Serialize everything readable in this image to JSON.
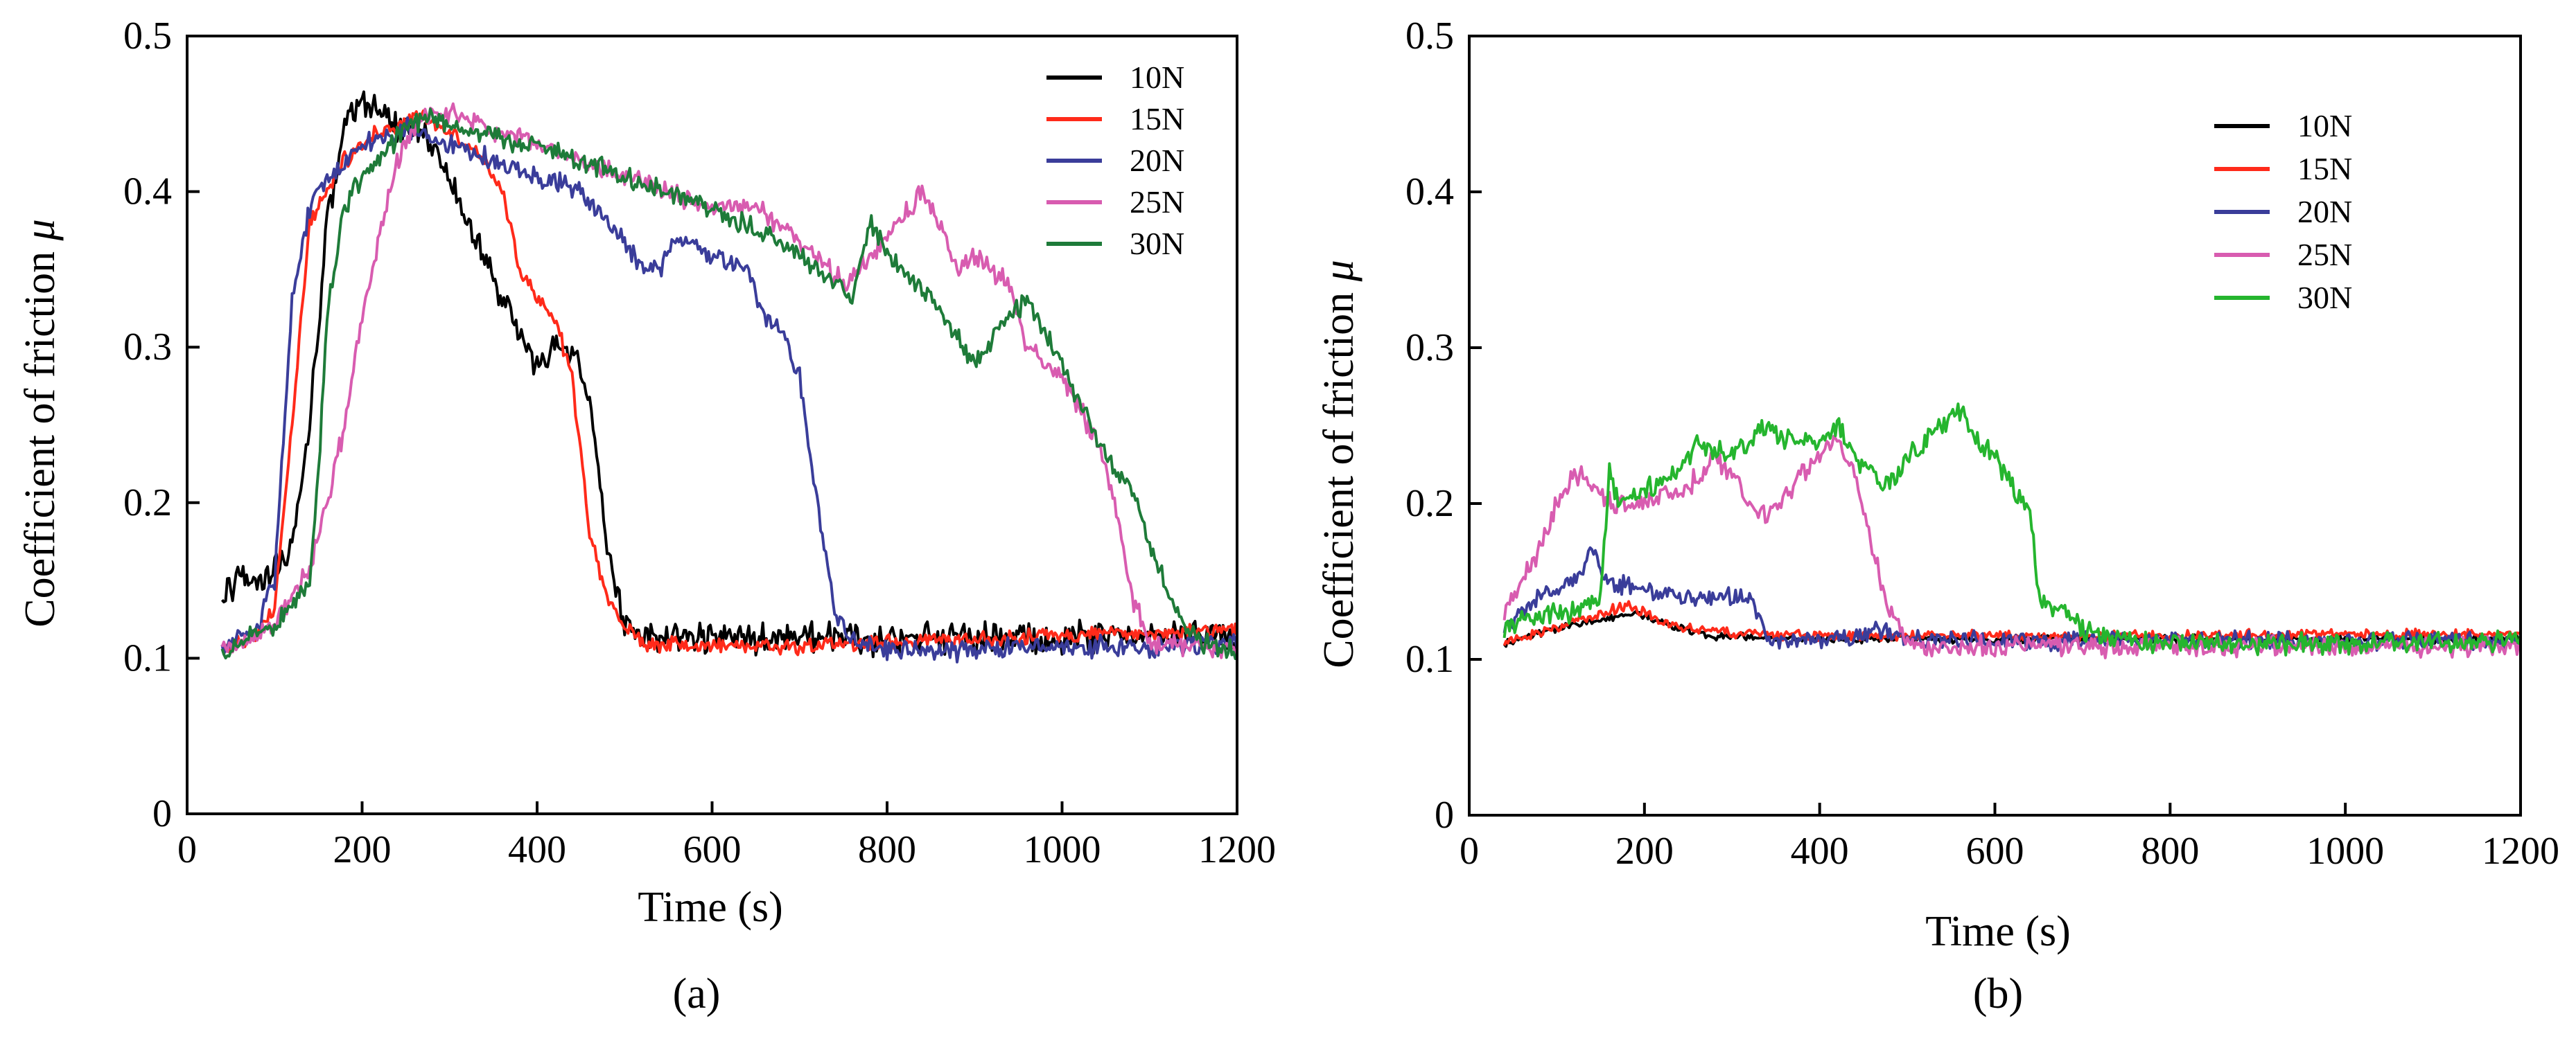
{
  "chart_data": [
    {
      "type": "line",
      "panel": "(a)",
      "xlabel": "Time (s)",
      "ylabel": "Coefficient of friction ",
      "ylabel_symbol": "μ",
      "xlim": [
        0,
        1200
      ],
      "ylim": [
        0,
        0.5
      ],
      "xticks": [
        0,
        200,
        400,
        600,
        800,
        1000,
        1200
      ],
      "yticks": [
        0,
        0.1,
        0.2,
        0.3,
        0.4,
        0.5
      ],
      "xtick_labels": [
        "0",
        "200",
        "400",
        "600",
        "800",
        "1000",
        "1200"
      ],
      "ytick_labels": [
        "0",
        "0.1",
        "0.2",
        "0.3",
        "0.4",
        "0.5"
      ],
      "legend_position": "top-right",
      "series": [
        {
          "name": "10N",
          "color": "#000000",
          "noise": 0.012,
          "x": [
            40,
            60,
            80,
            100,
            120,
            140,
            160,
            180,
            200,
            220,
            240,
            260,
            280,
            300,
            320,
            340,
            360,
            380,
            400,
            420,
            440,
            460,
            480,
            500,
            520,
            600,
            700,
            800,
            900,
            1000,
            1100,
            1200
          ],
          "y": [
            0.14,
            0.15,
            0.15,
            0.16,
            0.17,
            0.25,
            0.38,
            0.44,
            0.46,
            0.45,
            0.44,
            0.44,
            0.43,
            0.41,
            0.38,
            0.36,
            0.33,
            0.31,
            0.29,
            0.3,
            0.3,
            0.27,
            0.17,
            0.12,
            0.115,
            0.113,
            0.113,
            0.112,
            0.113,
            0.113,
            0.115,
            0.115
          ]
        },
        {
          "name": "15N",
          "color": "#ff2a1a",
          "noise": 0.006,
          "x": [
            40,
            60,
            80,
            100,
            120,
            140,
            160,
            180,
            200,
            220,
            240,
            260,
            280,
            300,
            320,
            340,
            360,
            380,
            400,
            420,
            440,
            460,
            480,
            500,
            520,
            600,
            700,
            800,
            900,
            1000,
            1100,
            1200
          ],
          "y": [
            0.105,
            0.11,
            0.115,
            0.13,
            0.25,
            0.38,
            0.4,
            0.42,
            0.43,
            0.44,
            0.44,
            0.45,
            0.445,
            0.44,
            0.43,
            0.42,
            0.4,
            0.35,
            0.33,
            0.32,
            0.28,
            0.18,
            0.14,
            0.12,
            0.11,
            0.108,
            0.108,
            0.11,
            0.112,
            0.115,
            0.117,
            0.118
          ]
        },
        {
          "name": "20N",
          "color": "#3a3d9a",
          "noise": 0.008,
          "x": [
            40,
            80,
            100,
            120,
            140,
            160,
            180,
            200,
            250,
            300,
            350,
            400,
            450,
            500,
            520,
            540,
            560,
            600,
            640,
            660,
            680,
            700,
            720,
            740,
            760,
            800,
            900,
            1000,
            1100,
            1200
          ],
          "y": [
            0.105,
            0.12,
            0.15,
            0.33,
            0.39,
            0.41,
            0.42,
            0.43,
            0.44,
            0.43,
            0.42,
            0.41,
            0.4,
            0.37,
            0.35,
            0.35,
            0.37,
            0.36,
            0.35,
            0.32,
            0.31,
            0.28,
            0.2,
            0.13,
            0.11,
            0.105,
            0.105,
            0.108,
            0.107,
            0.11
          ]
        },
        {
          "name": "25N",
          "color": "#d85cb0",
          "noise": 0.008,
          "x": [
            40,
            100,
            140,
            160,
            180,
            200,
            220,
            240,
            260,
            280,
            300,
            400,
            500,
            600,
            650,
            700,
            750,
            800,
            840,
            860,
            880,
            900,
            940,
            960,
            1000,
            1040,
            1060,
            1080,
            1100,
            1200
          ],
          "y": [
            0.105,
            0.12,
            0.16,
            0.2,
            0.25,
            0.32,
            0.37,
            0.42,
            0.44,
            0.45,
            0.45,
            0.43,
            0.41,
            0.39,
            0.39,
            0.37,
            0.34,
            0.37,
            0.4,
            0.38,
            0.35,
            0.36,
            0.34,
            0.3,
            0.28,
            0.24,
            0.2,
            0.14,
            0.11,
            0.105
          ]
        },
        {
          "name": "30N",
          "color": "#1e7b39",
          "noise": 0.008,
          "x": [
            40,
            100,
            140,
            150,
            160,
            180,
            200,
            250,
            280,
            300,
            400,
            500,
            600,
            700,
            760,
            780,
            800,
            850,
            900,
            940,
            960,
            1000,
            1040,
            1060,
            1080,
            1100,
            1140,
            1160,
            1200
          ],
          "y": [
            0.105,
            0.12,
            0.15,
            0.22,
            0.32,
            0.39,
            0.41,
            0.44,
            0.45,
            0.44,
            0.43,
            0.41,
            0.39,
            0.36,
            0.33,
            0.38,
            0.36,
            0.33,
            0.29,
            0.32,
            0.33,
            0.29,
            0.24,
            0.22,
            0.21,
            0.17,
            0.12,
            0.11,
            0.105
          ]
        }
      ]
    },
    {
      "type": "line",
      "panel": "(b)",
      "xlabel": "Time (s)",
      "ylabel": "Coefficient of friction ",
      "ylabel_symbol": "μ",
      "xlim": [
        0,
        1200
      ],
      "ylim": [
        0,
        0.5
      ],
      "xticks": [
        0,
        200,
        400,
        600,
        800,
        1000,
        1200
      ],
      "yticks": [
        0,
        0.1,
        0.2,
        0.3,
        0.4,
        0.5
      ],
      "xtick_labels": [
        "0",
        "200",
        "400",
        "600",
        "800",
        "1000",
        "1200"
      ],
      "ytick_labels": [
        "0",
        "0.1",
        "0.2",
        "0.3",
        "0.4",
        "0.5"
      ],
      "legend_position": "top-right",
      "series": [
        {
          "name": "10N",
          "color": "#000000",
          "noise": 0.003,
          "x": [
            40,
            100,
            150,
            180,
            200,
            240,
            280,
            400,
            600,
            800,
            1000,
            1200
          ],
          "y": [
            0.11,
            0.12,
            0.125,
            0.13,
            0.128,
            0.12,
            0.115,
            0.113,
            0.113,
            0.113,
            0.113,
            0.113
          ]
        },
        {
          "name": "15N",
          "color": "#ff2a1a",
          "noise": 0.004,
          "x": [
            40,
            100,
            150,
            180,
            200,
            240,
            300,
            400,
            600,
            800,
            1000,
            1200
          ],
          "y": [
            0.11,
            0.12,
            0.13,
            0.135,
            0.13,
            0.12,
            0.117,
            0.115,
            0.115,
            0.115,
            0.116,
            0.116
          ]
        },
        {
          "name": "20N",
          "color": "#3a3d9a",
          "noise": 0.007,
          "x": [
            40,
            80,
            120,
            140,
            160,
            200,
            240,
            280,
            300,
            320,
            340,
            360,
            400,
            450,
            460,
            500,
            600,
            800,
            1000,
            1200
          ],
          "y": [
            0.12,
            0.14,
            0.15,
            0.17,
            0.15,
            0.145,
            0.14,
            0.14,
            0.14,
            0.14,
            0.115,
            0.112,
            0.113,
            0.115,
            0.12,
            0.113,
            0.112,
            0.112,
            0.112,
            0.112
          ]
        },
        {
          "name": "25N",
          "color": "#d85cb0",
          "noise": 0.008,
          "x": [
            40,
            60,
            80,
            100,
            120,
            140,
            160,
            200,
            250,
            280,
            300,
            320,
            340,
            380,
            420,
            440,
            460,
            480,
            500,
            520,
            600,
            800,
            1000,
            1200
          ],
          "y": [
            0.13,
            0.15,
            0.17,
            0.2,
            0.22,
            0.21,
            0.2,
            0.2,
            0.21,
            0.23,
            0.22,
            0.2,
            0.19,
            0.22,
            0.24,
            0.22,
            0.17,
            0.13,
            0.11,
            0.108,
            0.108,
            0.108,
            0.108,
            0.108
          ]
        },
        {
          "name": "30N",
          "color": "#25b52e",
          "noise": 0.008,
          "x": [
            40,
            80,
            120,
            150,
            160,
            170,
            200,
            240,
            260,
            300,
            340,
            360,
            400,
            420,
            440,
            460,
            480,
            500,
            520,
            540,
            560,
            580,
            600,
            620,
            640,
            650,
            660,
            680,
            700,
            720,
            800,
            1000,
            1200
          ],
          "y": [
            0.12,
            0.13,
            0.13,
            0.14,
            0.22,
            0.2,
            0.21,
            0.22,
            0.24,
            0.23,
            0.25,
            0.24,
            0.24,
            0.25,
            0.23,
            0.22,
            0.21,
            0.23,
            0.24,
            0.25,
            0.26,
            0.24,
            0.23,
            0.21,
            0.2,
            0.14,
            0.135,
            0.13,
            0.12,
            0.115,
            0.11,
            0.11,
            0.112
          ]
        }
      ]
    }
  ]
}
